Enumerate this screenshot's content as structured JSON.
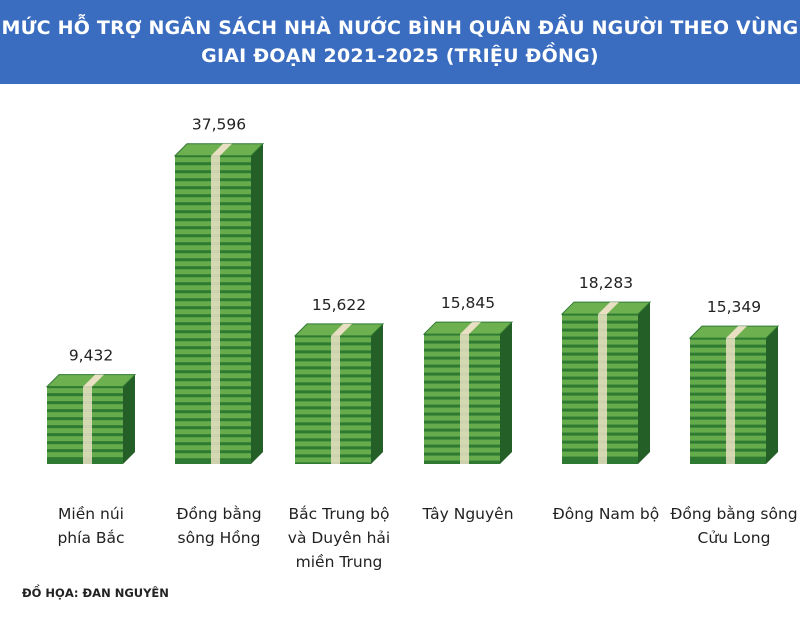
{
  "header": {
    "title_line1": "MỨC HỖ TRỢ NGÂN SÁCH NHÀ NƯỚC BÌNH QUÂN ĐẦU NGƯỜI THEO VÙNG",
    "title_line2": "GIAI ĐOẠN 2021-2025 (TRIỆU ĐỒNG)"
  },
  "credit": "ĐỒ HỌA: ĐAN NGUYÊN",
  "colors": {
    "banner": "#3a6cc0",
    "bill_dark": "#2f7a33",
    "bill_light": "#6db04f",
    "band": "#e9e0c4"
  },
  "chart_data": {
    "type": "bar",
    "title": "MỨC HỖ TRỢ NGÂN SÁCH NHÀ NƯỚC BÌNH QUÂN ĐẦU NGƯỜI THEO VÙNG GIAI ĐOẠN 2021-2025 (TRIỆU ĐỒNG)",
    "categories": [
      "Miền núi\nphía Bắc",
      "Đồng bằng\nsông Hồng",
      "Bắc Trung bộ\nvà Duyên hải\nmiền Trung",
      "Tây Nguyên",
      "Đông Nam bộ",
      "Đồng bằng sông\nCửu Long"
    ],
    "values": [
      9.432,
      37.596,
      15.622,
      15.845,
      18.283,
      15.349
    ],
    "data_labels": [
      "9,432",
      "37,596",
      "15,622",
      "15,845",
      "18,283",
      "15,349"
    ],
    "xlabel": "",
    "ylabel": "",
    "ylim": [
      0,
      40
    ],
    "grid": false,
    "legend": "none",
    "mark_style": "stacks of banknotes"
  }
}
